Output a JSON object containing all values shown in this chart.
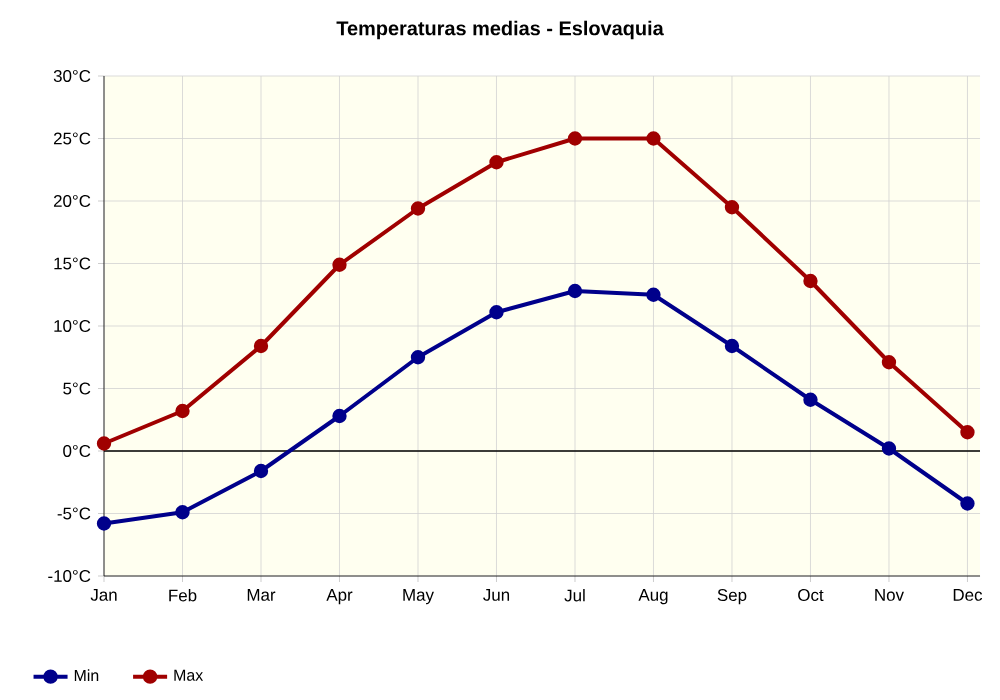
{
  "chart_data": {
    "type": "line",
    "title": "Temperaturas medias - Eslovaquia",
    "categories": [
      "Jan",
      "Feb",
      "Mar",
      "Apr",
      "May",
      "Jun",
      "Jul",
      "Aug",
      "Sep",
      "Oct",
      "Nov",
      "Dec"
    ],
    "series": [
      {
        "name": "Min",
        "color": "#00008b",
        "values": [
          -5.8,
          -4.9,
          -1.6,
          2.8,
          7.5,
          11.1,
          12.8,
          12.5,
          8.4,
          4.1,
          0.2,
          -4.2
        ]
      },
      {
        "name": "Max",
        "color": "#a00000",
        "values": [
          0.6,
          3.2,
          8.4,
          14.9,
          19.4,
          23.1,
          25.0,
          25.0,
          19.5,
          13.6,
          7.1,
          1.5
        ]
      }
    ],
    "ylim": [
      -10,
      30
    ],
    "yticks": [
      {
        "value": -10,
        "label": "-10°C"
      },
      {
        "value": -5,
        "label": "-5°C"
      },
      {
        "value": 0,
        "label": "0°C"
      },
      {
        "value": 5,
        "label": "5°C"
      },
      {
        "value": 10,
        "label": "10°C"
      },
      {
        "value": 15,
        "label": "15°C"
      },
      {
        "value": 20,
        "label": "20°C"
      },
      {
        "value": 25,
        "label": "25°C"
      },
      {
        "value": 30,
        "label": "30°C"
      }
    ],
    "ref_lines": [
      {
        "axis": "y",
        "value": 0,
        "color": "#000000"
      }
    ],
    "grid": true,
    "legend": "bottom left",
    "marker": "circle",
    "line_style": "solid"
  }
}
